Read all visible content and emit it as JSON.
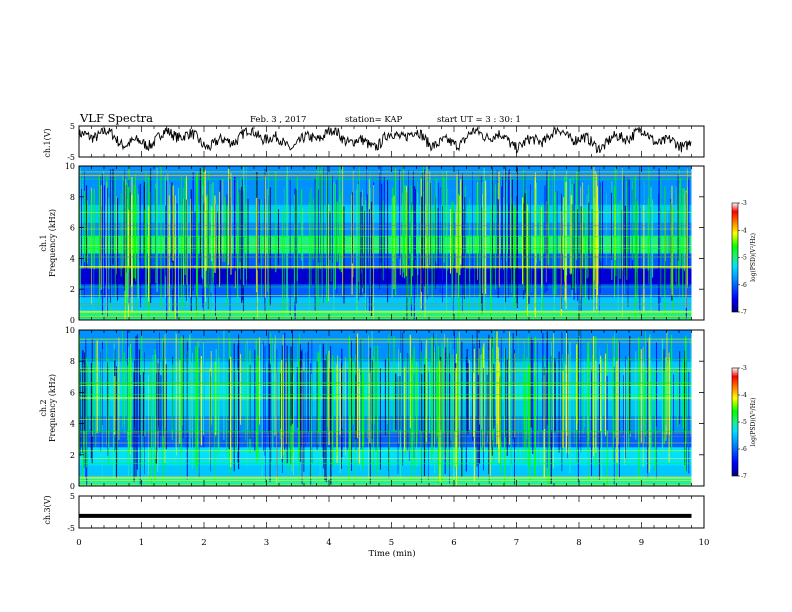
{
  "header": {
    "title": "VLF Spectra",
    "date": "Feb. 3 , 2017",
    "station": "station= KAP",
    "start": "start UT = 3 : 30: 1"
  },
  "colors": {
    "axes": "#000000",
    "waveform": "#000000",
    "colormap": [
      "#00007a",
      "#0000ff",
      "#0090ff",
      "#00e0ff",
      "#20f080",
      "#00ff00",
      "#ffff00",
      "#ff8000",
      "#ff0000",
      "#ffffff"
    ]
  },
  "chart_data": [
    {
      "type": "line",
      "panel": "ch1-waveform",
      "ylabel": "ch.1(V)",
      "ylim": [
        -5,
        5
      ],
      "yticks": [
        "5",
        "-5"
      ],
      "xlim": [
        0,
        10
      ],
      "description": "noisy waveform oscillating roughly between -2 and 3 V"
    },
    {
      "type": "heatmap",
      "panel": "ch1-spectrogram",
      "ylabel": "ch.1 Frequency (kHz)",
      "ylim": [
        0,
        10
      ],
      "yticks": [
        "10",
        "8",
        "6",
        "4",
        "2",
        "0"
      ],
      "xlim": [
        0,
        10
      ],
      "data_end_min": 9.8,
      "colorbar": {
        "label": "log(PSD)(V²/Hz)",
        "range": [
          -7,
          -3
        ],
        "ticks": [
          "-3",
          "-4",
          "-5",
          "-6",
          "-7"
        ]
      }
    },
    {
      "type": "heatmap",
      "panel": "ch2-spectrogram",
      "ylabel": "ch.2 Frequency (kHz)",
      "ylim": [
        0,
        10
      ],
      "yticks": [
        "10",
        "8",
        "6",
        "4",
        "2",
        "0"
      ],
      "xlim": [
        0,
        10
      ],
      "data_end_min": 9.8,
      "colorbar": {
        "label": "log(PSD)(V²/Hz)",
        "range": [
          -7,
          -3
        ],
        "ticks": [
          "-3",
          "-4",
          "-5",
          "-6",
          "-7"
        ]
      }
    },
    {
      "type": "line",
      "panel": "ch3-waveform",
      "ylabel": "ch.3(V)",
      "ylim": [
        -5,
        5
      ],
      "yticks": [
        "5",
        "-5"
      ],
      "xlim": [
        0,
        10
      ],
      "constant_value": -1.2,
      "description": "flat thick line"
    }
  ],
  "xaxis": {
    "label": "Time (min)",
    "ticks": [
      "0",
      "1",
      "2",
      "3",
      "4",
      "5",
      "6",
      "7",
      "8",
      "9",
      "10"
    ]
  }
}
